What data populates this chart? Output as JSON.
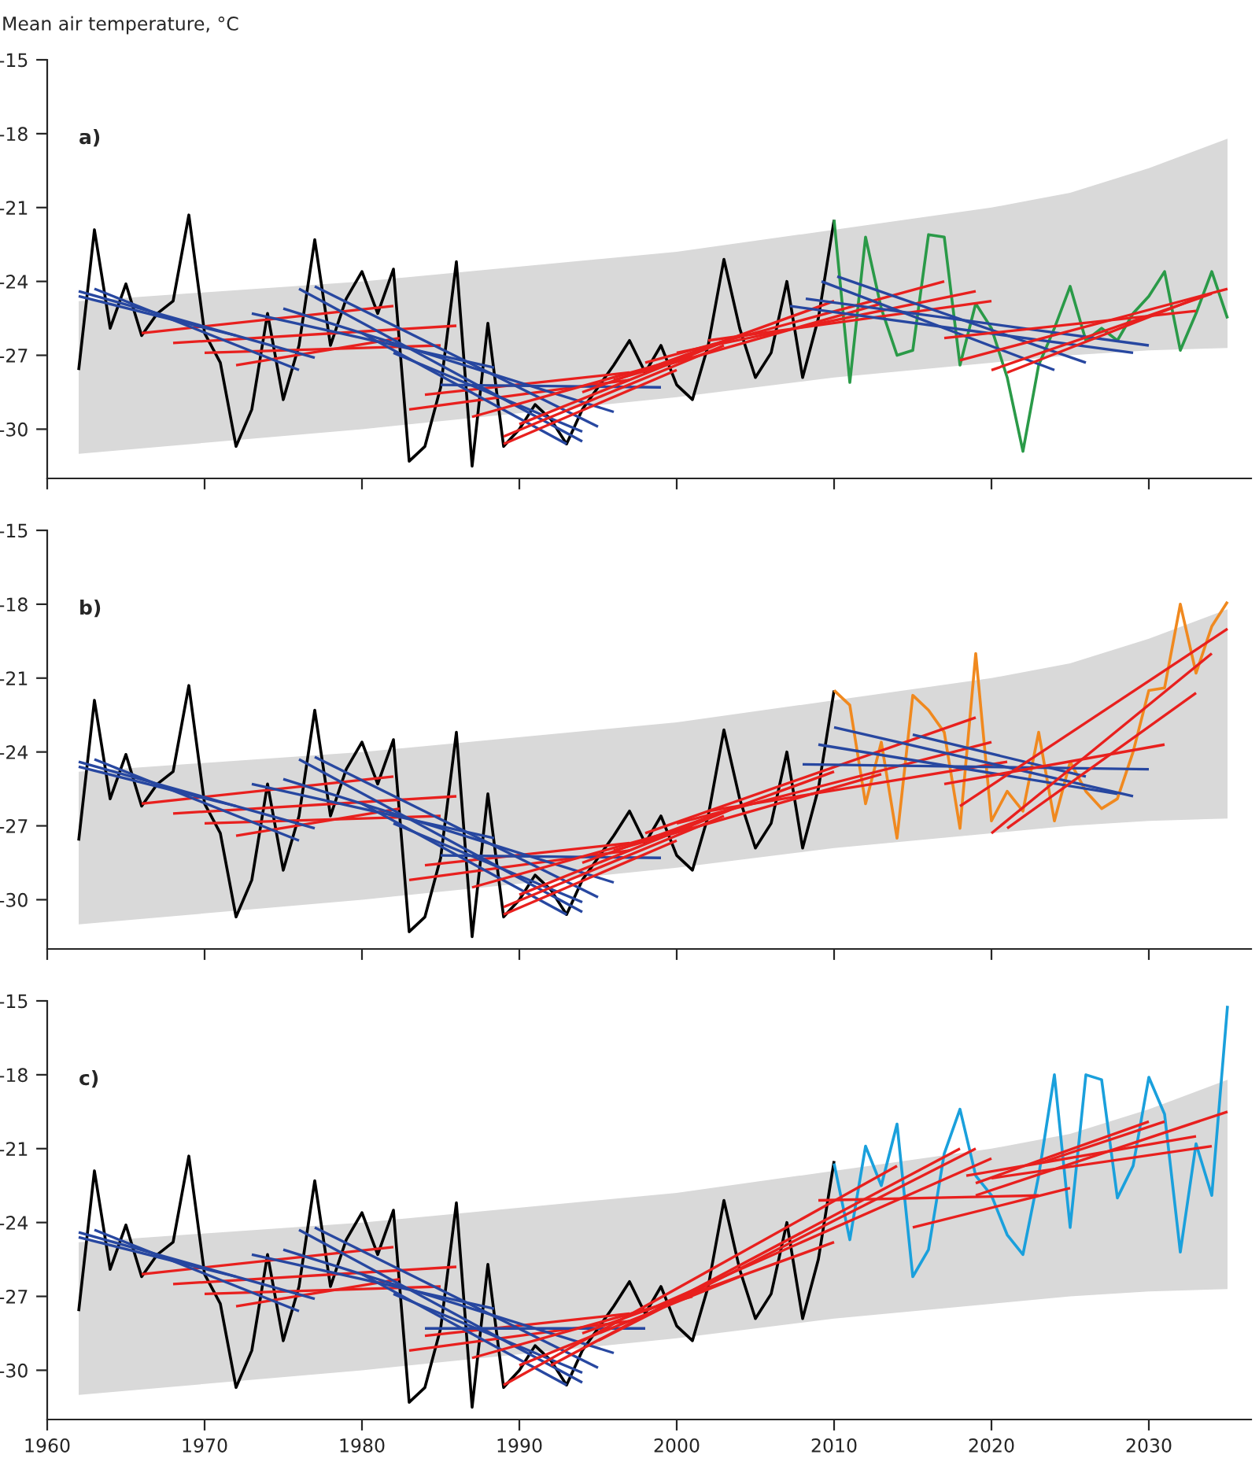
{
  "chart_data": [
    {
      "type": "line",
      "ylabel": "Mean air temperature, °C",
      "annotations": [
        "a)"
      ],
      "xlim": [
        1960,
        2036.5
      ],
      "ylim": [
        -32,
        -15
      ],
      "xticks": [
        1960,
        1970,
        1980,
        1990,
        2000,
        2010,
        2020,
        2030
      ],
      "yticks": [
        -15,
        -18,
        -21,
        -24,
        -27,
        -30
      ],
      "tick_labels": "y",
      "grid": false,
      "legend": false,
      "series": [
        {
          "color": "#d9d9d9",
          "x": [
            1962,
            1980,
            2000,
            2010,
            2020,
            2025,
            2030,
            2035
          ],
          "values": [
            null,
            null,
            null,
            null,
            null,
            null,
            null,
            null
          ],
          "lower": [
            -31.0,
            -30.0,
            -28.7,
            -27.9,
            -27.3,
            -27.0,
            -26.8,
            -26.7
          ],
          "upper": [
            -24.8,
            -24.0,
            -22.8,
            -21.9,
            -21.0,
            -20.4,
            -19.4,
            -18.2
          ]
        },
        {
          "color": "#000000",
          "x": [
            1962,
            1963,
            1964,
            1965,
            1966,
            1967,
            1968,
            1969,
            1970,
            1971,
            1972,
            1973,
            1974,
            1975,
            1976,
            1977,
            1978,
            1979,
            1980,
            1981,
            1982,
            1983,
            1984,
            1985,
            1986,
            1987,
            1988,
            1989,
            1990,
            1991,
            1992,
            1993,
            1994,
            1995,
            1996,
            1997,
            1998,
            1999,
            2000,
            2001,
            2002,
            2003,
            2004,
            2005,
            2006,
            2007,
            2008,
            2009,
            2010
          ],
          "values": [
            -27.6,
            -21.9,
            -25.9,
            -24.1,
            -26.2,
            -25.3,
            -24.8,
            -21.3,
            -26.1,
            -27.3,
            -30.7,
            -29.2,
            -25.3,
            -28.8,
            -26.6,
            -22.3,
            -26.6,
            -24.7,
            -23.6,
            -25.3,
            -23.5,
            -31.3,
            -30.7,
            -28.3,
            -23.2,
            -31.5,
            -25.7,
            -30.7,
            -30.0,
            -29.0,
            -29.6,
            -30.6,
            -29.2,
            -28.3,
            -27.4,
            -26.4,
            -27.7,
            -26.6,
            -28.2,
            -28.8,
            -26.6,
            -23.1,
            -25.9,
            -27.9,
            -26.9,
            -24.0,
            -27.9,
            -25.5,
            -21.5
          ]
        },
        {
          "color": "#2a9a48",
          "x": [
            2010,
            2011,
            2012,
            2013,
            2014,
            2015,
            2016,
            2017,
            2018,
            2019,
            2020,
            2021,
            2022,
            2023,
            2024,
            2025,
            2026,
            2027,
            2028,
            2029,
            2030,
            2031,
            2032,
            2033,
            2034,
            2035
          ],
          "values": [
            -21.5,
            -28.1,
            -22.2,
            -25.1,
            -27.0,
            -26.8,
            -22.1,
            -22.2,
            -27.4,
            -24.9,
            -25.9,
            -27.9,
            -30.9,
            -27.4,
            -25.9,
            -24.2,
            -26.4,
            -25.9,
            -26.4,
            -25.3,
            -24.6,
            -23.6,
            -26.8,
            -25.3,
            -23.6,
            -25.5
          ]
        },
        {
          "color": "#e8201e",
          "x": [
            1966,
            1982
          ],
          "values": [
            -26.1,
            -25.0
          ]
        },
        {
          "color": "#e8201e",
          "x": [
            1968,
            1986
          ],
          "values": [
            -26.5,
            -25.8
          ]
        },
        {
          "color": "#e8201e",
          "x": [
            1970,
            1985
          ],
          "values": [
            -26.9,
            -26.6
          ]
        },
        {
          "color": "#e8201e",
          "x": [
            1972,
            1982.4
          ],
          "values": [
            -27.4,
            -26.3
          ]
        },
        {
          "color": "#e8201e",
          "x": [
            1983,
            1997
          ],
          "values": [
            -29.2,
            -28.0
          ]
        },
        {
          "color": "#e8201e",
          "x": [
            1984,
            1997
          ],
          "values": [
            -28.6,
            -27.7
          ]
        },
        {
          "color": "#2747a0",
          "x": [
            1962,
            1977
          ],
          "values": [
            -24.4,
            -27.1
          ]
        },
        {
          "color": "#2747a0",
          "x": [
            1963,
            1976
          ],
          "values": [
            -24.3,
            -27.6
          ]
        },
        {
          "color": "#2747a0",
          "x": [
            1962,
            1972
          ],
          "values": [
            -24.6,
            -26.2
          ]
        },
        {
          "color": "#2747a0",
          "x": [
            1973,
            1988.4
          ],
          "values": [
            -25.3,
            -27.5
          ]
        },
        {
          "color": "#2747a0",
          "x": [
            1976,
            1994
          ],
          "values": [
            -24.3,
            -30.5
          ]
        },
        {
          "color": "#2747a0",
          "x": [
            1977,
            1995
          ],
          "values": [
            -24.2,
            -29.9
          ]
        },
        {
          "color": "#2747a0",
          "x": [
            1975,
            1996
          ],
          "values": [
            -25.1,
            -29.3
          ]
        },
        {
          "color": "#2747a0",
          "x": [
            1982,
            1994
          ],
          "values": [
            -26.9,
            -30.1
          ]
        },
        {
          "color": "#2747a0",
          "x": [
            1980,
            1993
          ],
          "values": [
            -26.1,
            -30.6
          ]
        },
        {
          "color": "#2747a0",
          "x": [
            1985,
            1999
          ],
          "values": [
            -28.2,
            -28.3
          ]
        },
        {
          "color": "#e8201e",
          "x": [
            1989,
            2000
          ],
          "values": [
            -30.6,
            -27.6
          ]
        },
        {
          "color": "#e8201e",
          "x": [
            1989,
            2003
          ],
          "values": [
            -30.3,
            -26.6
          ]
        },
        {
          "color": "#e8201e",
          "x": [
            1987,
            2001
          ],
          "values": [
            -29.5,
            -27.0
          ]
        },
        {
          "color": "#e8201e",
          "x": [
            1990,
            2004
          ],
          "values": [
            -29.8,
            -26.2
          ]
        },
        {
          "color": "#e8201e",
          "x": [
            1994,
            2010
          ],
          "values": [
            -28.5,
            -24.8
          ]
        },
        {
          "color": "#e8201e",
          "x": [
            1996,
            2013
          ],
          "values": [
            -28.0,
            -24.9
          ]
        },
        {
          "color": "#e8201e",
          "x": [
            1998,
            2017
          ],
          "values": [
            -27.3,
            -24.0
          ]
        },
        {
          "color": "#e8201e",
          "x": [
            2000,
            2019
          ],
          "values": [
            -26.9,
            -24.4
          ]
        },
        {
          "color": "#e8201e",
          "x": [
            2002,
            2020
          ],
          "values": [
            -26.4,
            -24.8
          ]
        },
        {
          "color": "#2747a0",
          "x": [
            2009.2,
            2024
          ],
          "values": [
            -24.0,
            -27.6
          ]
        },
        {
          "color": "#2747a0",
          "x": [
            2010.2,
            2026
          ],
          "values": [
            -23.8,
            -27.3
          ]
        },
        {
          "color": "#2747a0",
          "x": [
            2008.2,
            2030
          ],
          "values": [
            -24.7,
            -26.6
          ]
        },
        {
          "color": "#2747a0",
          "x": [
            2007.2,
            2029
          ],
          "values": [
            -25.0,
            -26.9
          ]
        },
        {
          "color": "#e8201e",
          "x": [
            2017,
            2033
          ],
          "values": [
            -26.3,
            -25.2
          ]
        },
        {
          "color": "#e8201e",
          "x": [
            2018,
            2035
          ],
          "values": [
            -27.2,
            -24.3
          ]
        },
        {
          "color": "#e8201e",
          "x": [
            2020,
            2034
          ],
          "values": [
            -27.6,
            -24.5
          ]
        },
        {
          "color": "#e8201e",
          "x": [
            2021,
            2033
          ],
          "values": [
            -27.7,
            -24.7
          ]
        }
      ]
    },
    {
      "type": "line",
      "annotations": [
        "b)"
      ],
      "xlim": [
        1960,
        2036.5
      ],
      "ylim": [
        -32,
        -15
      ],
      "xticks": [
        1960,
        1970,
        1980,
        1990,
        2000,
        2010,
        2020,
        2030
      ],
      "yticks": [
        -15,
        -18,
        -21,
        -24,
        -27,
        -30
      ],
      "tick_labels": "y",
      "grid": false,
      "legend": false,
      "series": [
        {
          "color": "#d9d9d9",
          "x": [
            1962,
            1980,
            2000,
            2010,
            2020,
            2025,
            2030,
            2035
          ],
          "values": [
            null,
            null,
            null,
            null,
            null,
            null,
            null,
            null
          ],
          "lower": [
            -31.0,
            -30.0,
            -28.7,
            -27.9,
            -27.3,
            -27.0,
            -26.8,
            -26.7
          ],
          "upper": [
            -24.8,
            -24.0,
            -22.8,
            -21.9,
            -21.0,
            -20.4,
            -19.4,
            -18.2
          ]
        },
        {
          "color": "#000000",
          "x": [
            1962,
            1963,
            1964,
            1965,
            1966,
            1967,
            1968,
            1969,
            1970,
            1971,
            1972,
            1973,
            1974,
            1975,
            1976,
            1977,
            1978,
            1979,
            1980,
            1981,
            1982,
            1983,
            1984,
            1985,
            1986,
            1987,
            1988,
            1989,
            1990,
            1991,
            1992,
            1993,
            1994,
            1995,
            1996,
            1997,
            1998,
            1999,
            2000,
            2001,
            2002,
            2003,
            2004,
            2005,
            2006,
            2007,
            2008,
            2009,
            2010
          ],
          "values": [
            -27.6,
            -21.9,
            -25.9,
            -24.1,
            -26.2,
            -25.3,
            -24.8,
            -21.3,
            -26.1,
            -27.3,
            -30.7,
            -29.2,
            -25.3,
            -28.8,
            -26.6,
            -22.3,
            -26.6,
            -24.7,
            -23.6,
            -25.3,
            -23.5,
            -31.3,
            -30.7,
            -28.3,
            -23.2,
            -31.5,
            -25.7,
            -30.7,
            -30.0,
            -29.0,
            -29.6,
            -30.6,
            -29.2,
            -28.3,
            -27.4,
            -26.4,
            -27.7,
            -26.6,
            -28.2,
            -28.8,
            -26.6,
            -23.1,
            -25.9,
            -27.9,
            -26.9,
            -24.0,
            -27.9,
            -25.5,
            -21.5
          ]
        },
        {
          "color": "#f0891f",
          "x": [
            2010,
            2011,
            2012,
            2013,
            2014,
            2015,
            2016,
            2017,
            2018,
            2019,
            2020,
            2021,
            2022,
            2023,
            2024,
            2025,
            2026,
            2027,
            2028,
            2029,
            2030,
            2031,
            2032,
            2033,
            2034,
            2035
          ],
          "values": [
            -21.5,
            -22.1,
            -26.1,
            -23.6,
            -27.5,
            -21.7,
            -22.3,
            -23.2,
            -27.1,
            -20.0,
            -26.8,
            -25.6,
            -26.4,
            -23.2,
            -26.8,
            -24.4,
            -25.6,
            -26.3,
            -25.9,
            -24.0,
            -21.5,
            -21.4,
            -18.0,
            -20.8,
            -18.9,
            -17.9
          ]
        },
        {
          "color": "#e8201e",
          "x": [
            1966,
            1982
          ],
          "values": [
            -26.1,
            -25.0
          ]
        },
        {
          "color": "#e8201e",
          "x": [
            1968,
            1986
          ],
          "values": [
            -26.5,
            -25.8
          ]
        },
        {
          "color": "#e8201e",
          "x": [
            1970,
            1985
          ],
          "values": [
            -26.9,
            -26.6
          ]
        },
        {
          "color": "#e8201e",
          "x": [
            1972,
            1982.4
          ],
          "values": [
            -27.4,
            -26.3
          ]
        },
        {
          "color": "#e8201e",
          "x": [
            1983,
            1997
          ],
          "values": [
            -29.2,
            -28.0
          ]
        },
        {
          "color": "#e8201e",
          "x": [
            1984,
            1997
          ],
          "values": [
            -28.6,
            -27.7
          ]
        },
        {
          "color": "#2747a0",
          "x": [
            1962,
            1977
          ],
          "values": [
            -24.4,
            -27.1
          ]
        },
        {
          "color": "#2747a0",
          "x": [
            1963,
            1976
          ],
          "values": [
            -24.3,
            -27.6
          ]
        },
        {
          "color": "#2747a0",
          "x": [
            1962,
            1972
          ],
          "values": [
            -24.6,
            -26.2
          ]
        },
        {
          "color": "#2747a0",
          "x": [
            1973,
            1988.4
          ],
          "values": [
            -25.3,
            -27.5
          ]
        },
        {
          "color": "#2747a0",
          "x": [
            1976,
            1994
          ],
          "values": [
            -24.3,
            -30.5
          ]
        },
        {
          "color": "#2747a0",
          "x": [
            1977,
            1995
          ],
          "values": [
            -24.2,
            -29.9
          ]
        },
        {
          "color": "#2747a0",
          "x": [
            1975,
            1996
          ],
          "values": [
            -25.1,
            -29.3
          ]
        },
        {
          "color": "#2747a0",
          "x": [
            1982,
            1994
          ],
          "values": [
            -26.9,
            -30.1
          ]
        },
        {
          "color": "#2747a0",
          "x": [
            1980,
            1993
          ],
          "values": [
            -26.1,
            -30.6
          ]
        },
        {
          "color": "#2747a0",
          "x": [
            1985,
            1999
          ],
          "values": [
            -28.2,
            -28.3
          ]
        },
        {
          "color": "#e8201e",
          "x": [
            1989,
            2000
          ],
          "values": [
            -30.6,
            -27.6
          ]
        },
        {
          "color": "#e8201e",
          "x": [
            1989,
            2003
          ],
          "values": [
            -30.3,
            -26.6
          ]
        },
        {
          "color": "#e8201e",
          "x": [
            1987,
            2001
          ],
          "values": [
            -29.5,
            -27.0
          ]
        },
        {
          "color": "#e8201e",
          "x": [
            1990,
            2004
          ],
          "values": [
            -29.8,
            -26.2
          ]
        },
        {
          "color": "#e8201e",
          "x": [
            1994,
            2010
          ],
          "values": [
            -28.5,
            -24.8
          ]
        },
        {
          "color": "#e8201e",
          "x": [
            1996,
            2013
          ],
          "values": [
            -28.0,
            -24.9
          ]
        },
        {
          "color": "#e8201e",
          "x": [
            1998,
            2019
          ],
          "values": [
            -27.3,
            -22.6
          ]
        },
        {
          "color": "#e8201e",
          "x": [
            2000,
            2020
          ],
          "values": [
            -26.9,
            -23.6
          ]
        },
        {
          "color": "#e8201e",
          "x": [
            2002,
            2021
          ],
          "values": [
            -26.4,
            -24.4
          ]
        },
        {
          "color": "#2747a0",
          "x": [
            2010,
            2029
          ],
          "values": [
            -23.0,
            -25.8
          ]
        },
        {
          "color": "#2747a0",
          "x": [
            2009,
            2028
          ],
          "values": [
            -23.7,
            -25.7
          ]
        },
        {
          "color": "#2747a0",
          "x": [
            2008,
            2030
          ],
          "values": [
            -24.5,
            -24.7
          ]
        },
        {
          "color": "#2747a0",
          "x": [
            2015,
            2026
          ],
          "values": [
            -23.3,
            -25.0
          ]
        },
        {
          "color": "#e8201e",
          "x": [
            2018,
            2035
          ],
          "values": [
            -26.2,
            -19.0
          ]
        },
        {
          "color": "#e8201e",
          "x": [
            2020,
            2034
          ],
          "values": [
            -27.3,
            -20.0
          ]
        },
        {
          "color": "#e8201e",
          "x": [
            2021,
            2033
          ],
          "values": [
            -27.1,
            -21.6
          ]
        },
        {
          "color": "#e8201e",
          "x": [
            2017,
            2031
          ],
          "values": [
            -25.3,
            -23.7
          ]
        }
      ]
    },
    {
      "type": "line",
      "annotations": [
        "c)"
      ],
      "xlim": [
        1960,
        2036.5
      ],
      "ylim": [
        -32,
        -15
      ],
      "xticks": [
        1960,
        1970,
        1980,
        1990,
        2000,
        2010,
        2020,
        2030
      ],
      "yticks": [
        -15,
        -18,
        -21,
        -24,
        -27,
        -30
      ],
      "grid": false,
      "legend": false,
      "series": [
        {
          "color": "#d9d9d9",
          "x": [
            1962,
            1980,
            2000,
            2010,
            2020,
            2025,
            2030,
            2035
          ],
          "values": [
            null,
            null,
            null,
            null,
            null,
            null,
            null,
            null
          ],
          "lower": [
            -31.0,
            -30.0,
            -28.7,
            -27.9,
            -27.3,
            -27.0,
            -26.8,
            -26.7
          ],
          "upper": [
            -24.8,
            -24.0,
            -22.8,
            -21.9,
            -21.0,
            -20.4,
            -19.4,
            -18.2
          ]
        },
        {
          "color": "#000000",
          "x": [
            1962,
            1963,
            1964,
            1965,
            1966,
            1967,
            1968,
            1969,
            1970,
            1971,
            1972,
            1973,
            1974,
            1975,
            1976,
            1977,
            1978,
            1979,
            1980,
            1981,
            1982,
            1983,
            1984,
            1985,
            1986,
            1987,
            1988,
            1989,
            1990,
            1991,
            1992,
            1993,
            1994,
            1995,
            1996,
            1997,
            1998,
            1999,
            2000,
            2001,
            2002,
            2003,
            2004,
            2005,
            2006,
            2007,
            2008,
            2009,
            2010
          ],
          "values": [
            -27.6,
            -21.9,
            -25.9,
            -24.1,
            -26.2,
            -25.3,
            -24.8,
            -21.3,
            -26.1,
            -27.3,
            -30.7,
            -29.2,
            -25.3,
            -28.8,
            -26.6,
            -22.3,
            -26.6,
            -24.7,
            -23.6,
            -25.3,
            -23.5,
            -31.3,
            -30.7,
            -28.3,
            -23.2,
            -31.5,
            -25.7,
            -30.7,
            -30.0,
            -29.0,
            -29.6,
            -30.6,
            -29.2,
            -28.3,
            -27.4,
            -26.4,
            -27.7,
            -26.6,
            -28.2,
            -28.8,
            -26.6,
            -23.1,
            -25.9,
            -27.9,
            -26.9,
            -24.0,
            -27.9,
            -25.5,
            -21.5
          ]
        },
        {
          "color": "#1aa0dc",
          "x": [
            2010,
            2011,
            2012,
            2013,
            2014,
            2015,
            2016,
            2017,
            2018,
            2019,
            2020,
            2021,
            2022,
            2023,
            2024,
            2025,
            2026,
            2027,
            2028,
            2029,
            2030,
            2031,
            2032,
            2033,
            2034,
            2035
          ],
          "values": [
            -21.6,
            -24.7,
            -20.9,
            -22.5,
            -20.0,
            -26.2,
            -25.1,
            -21.2,
            -19.4,
            -22.1,
            -22.9,
            -24.5,
            -25.3,
            -22.1,
            -18.0,
            -24.2,
            -18.0,
            -18.2,
            -23.0,
            -21.7,
            -18.1,
            -19.6,
            -25.2,
            -20.8,
            -22.9,
            -15.2
          ]
        },
        {
          "color": "#e8201e",
          "x": [
            1966,
            1982
          ],
          "values": [
            -26.1,
            -25.0
          ]
        },
        {
          "color": "#e8201e",
          "x": [
            1968,
            1986
          ],
          "values": [
            -26.5,
            -25.8
          ]
        },
        {
          "color": "#e8201e",
          "x": [
            1970,
            1985
          ],
          "values": [
            -26.9,
            -26.6
          ]
        },
        {
          "color": "#e8201e",
          "x": [
            1972,
            1982.4
          ],
          "values": [
            -27.4,
            -26.3
          ]
        },
        {
          "color": "#e8201e",
          "x": [
            1983,
            1997
          ],
          "values": [
            -29.2,
            -28.0
          ]
        },
        {
          "color": "#e8201e",
          "x": [
            1984,
            1997
          ],
          "values": [
            -28.6,
            -27.7
          ]
        },
        {
          "color": "#2747a0",
          "x": [
            1962,
            1977
          ],
          "values": [
            -24.4,
            -27.1
          ]
        },
        {
          "color": "#2747a0",
          "x": [
            1963,
            1976
          ],
          "values": [
            -24.3,
            -27.6
          ]
        },
        {
          "color": "#2747a0",
          "x": [
            1962,
            1972
          ],
          "values": [
            -24.6,
            -26.2
          ]
        },
        {
          "color": "#2747a0",
          "x": [
            1973,
            1988.4
          ],
          "values": [
            -25.3,
            -27.5
          ]
        },
        {
          "color": "#2747a0",
          "x": [
            1976,
            1994
          ],
          "values": [
            -24.3,
            -30.5
          ]
        },
        {
          "color": "#2747a0",
          "x": [
            1977,
            1995
          ],
          "values": [
            -24.2,
            -29.9
          ]
        },
        {
          "color": "#2747a0",
          "x": [
            1975,
            1996
          ],
          "values": [
            -25.1,
            -29.3
          ]
        },
        {
          "color": "#2747a0",
          "x": [
            1982,
            1994
          ],
          "values": [
            -26.9,
            -30.1
          ]
        },
        {
          "color": "#2747a0",
          "x": [
            1980,
            1993
          ],
          "values": [
            -26.1,
            -30.6
          ]
        },
        {
          "color": "#2747a0",
          "x": [
            1984,
            1998
          ],
          "values": [
            -28.3,
            -28.3
          ]
        },
        {
          "color": "#e8201e",
          "x": [
            1989,
            2014
          ],
          "values": [
            -30.6,
            -21.7
          ]
        },
        {
          "color": "#e8201e",
          "x": [
            1992,
            2018
          ],
          "values": [
            -29.8,
            -21.0
          ]
        },
        {
          "color": "#e8201e",
          "x": [
            1995,
            2019
          ],
          "values": [
            -28.8,
            -21.0
          ]
        },
        {
          "color": "#e8201e",
          "x": [
            1998,
            2020
          ],
          "values": [
            -27.6,
            -21.4
          ]
        },
        {
          "color": "#e8201e",
          "x": [
            1987,
            2001
          ],
          "values": [
            -29.5,
            -27.0
          ]
        },
        {
          "color": "#e8201e",
          "x": [
            1990,
            2004
          ],
          "values": [
            -29.8,
            -26.2
          ]
        },
        {
          "color": "#e8201e",
          "x": [
            1994,
            2010
          ],
          "values": [
            -28.5,
            -24.8
          ]
        },
        {
          "color": "#e8201e",
          "x": [
            2009,
            2023
          ],
          "values": [
            -23.1,
            -22.9
          ]
        },
        {
          "color": "#e8201e",
          "x": [
            2015,
            2025
          ],
          "values": [
            -24.2,
            -22.6
          ]
        },
        {
          "color": "#e8201e",
          "x": [
            2019,
            2035
          ],
          "values": [
            -22.9,
            -19.5
          ]
        },
        {
          "color": "#e8201e",
          "x": [
            2020,
            2034
          ],
          "values": [
            -22.2,
            -20.9
          ]
        },
        {
          "color": "#e8201e",
          "x": [
            2018.4,
            2033
          ],
          "values": [
            -22.1,
            -20.5
          ]
        },
        {
          "color": "#e8201e",
          "x": [
            2019,
            2030
          ],
          "values": [
            -22.4,
            -19.9
          ]
        },
        {
          "color": "#e8201e",
          "x": [
            2023,
            2031
          ],
          "values": [
            -21.6,
            -19.9
          ]
        }
      ]
    }
  ]
}
